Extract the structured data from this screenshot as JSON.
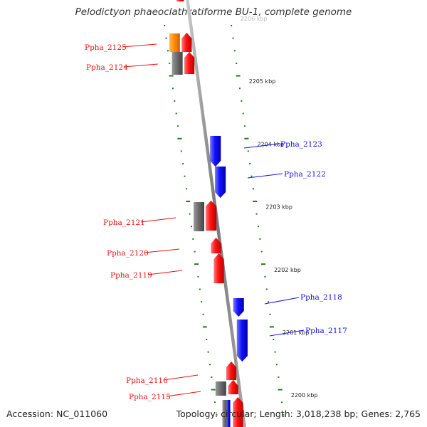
{
  "title": "Pelodictyon phaeoclathratiforme BU-1, complete genome",
  "footer": {
    "accession": "Accession: NC_011060",
    "summary": "Topology: circular; Length: 3,018,238 bp; Genes: 2,765"
  },
  "colors": {
    "forward_gene": "#ee1111",
    "reverse_gene": "#1111ee",
    "other_feature": "#666666",
    "highlight_feature": "#ff8800",
    "tick": "#227722",
    "backbone": "#888888"
  },
  "ruler_labels": [
    {
      "kbp": 2206,
      "label": "2206 kbp"
    },
    {
      "kbp": 2205,
      "label": "2205 kbp"
    },
    {
      "kbp": 2204,
      "label": "2204 kbp"
    },
    {
      "kbp": 2203,
      "label": "2203 kbp"
    },
    {
      "kbp": 2202,
      "label": "2202 kbp"
    },
    {
      "kbp": 2201,
      "label": "2201 kbp"
    },
    {
      "kbp": 2200,
      "label": "2200 kbp"
    }
  ],
  "genes": [
    {
      "locus": "Ppha_2125",
      "strand": "forward"
    },
    {
      "locus": "Ppha_2124",
      "strand": "forward"
    },
    {
      "locus": "Ppha_2123",
      "strand": "reverse"
    },
    {
      "locus": "Ppha_2122",
      "strand": "reverse"
    },
    {
      "locus": "Ppha_2121",
      "strand": "forward"
    },
    {
      "locus": "Ppha_2120",
      "strand": "forward"
    },
    {
      "locus": "Ppha_2119",
      "strand": "forward"
    },
    {
      "locus": "Ppha_2118",
      "strand": "reverse"
    },
    {
      "locus": "Ppha_2117",
      "strand": "reverse"
    },
    {
      "locus": "Ppha_2116",
      "strand": "forward"
    },
    {
      "locus": "Ppha_2115",
      "strand": "forward"
    }
  ]
}
